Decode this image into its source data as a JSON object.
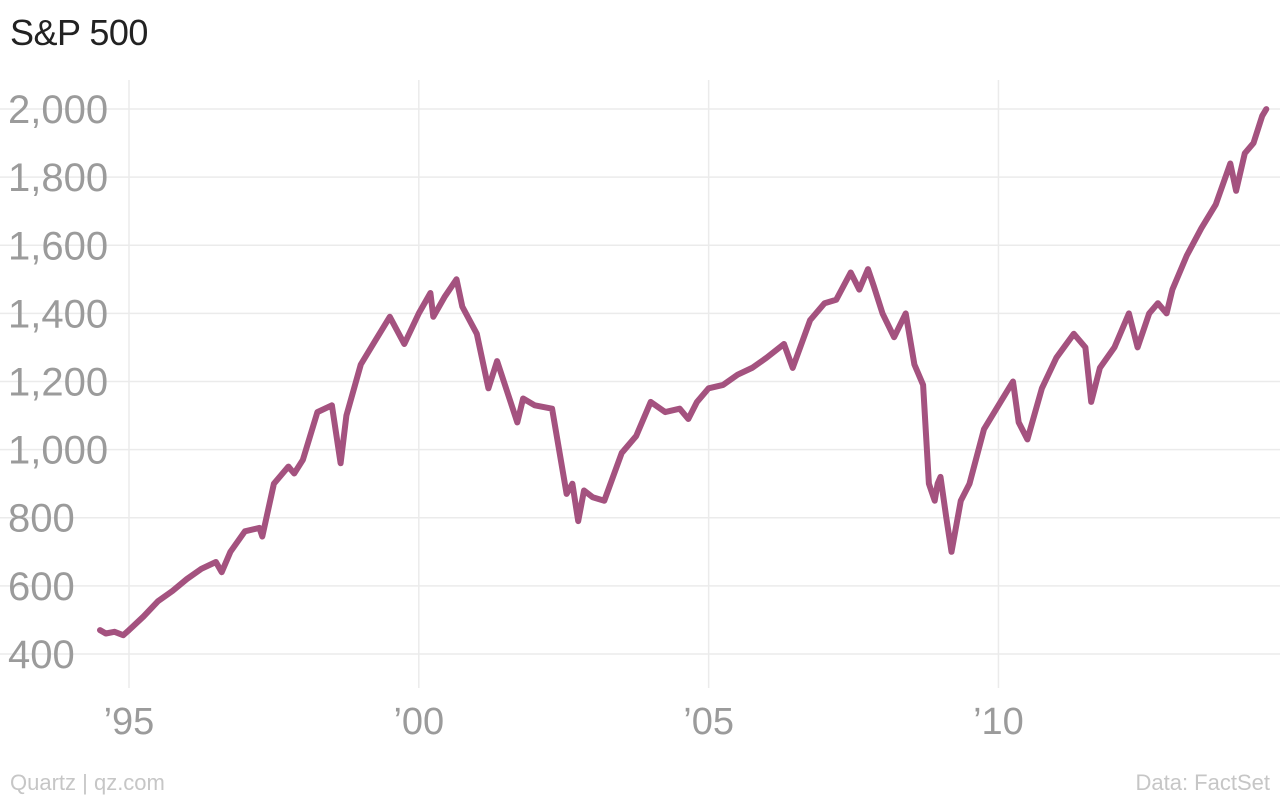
{
  "title": "S&P 500",
  "credit": "Quartz | qz.com",
  "source": "Data: FactSet",
  "colors": {
    "line": "#a4527f",
    "grid": "#ebebeb",
    "tick": "#9b9b9b"
  },
  "chart_data": {
    "type": "line",
    "title": "S&P 500",
    "xlabel": "",
    "ylabel": "",
    "xlim": [
      1994.5,
      2014.65
    ],
    "ylim": [
      300,
      2100
    ],
    "grid": true,
    "legend": "none",
    "y_ticks": [
      400,
      600,
      800,
      1000,
      1200,
      1400,
      1600,
      1800,
      2000
    ],
    "y_tick_labels": [
      "400",
      "600",
      "800",
      "1,000",
      "1,200",
      "1,400",
      "1,600",
      "1,800",
      "2,000"
    ],
    "x_ticks": [
      1995,
      2000,
      2005,
      2010
    ],
    "x_tick_labels": [
      "’95",
      "’00",
      "’05",
      "’10"
    ],
    "series": [
      {
        "x": [
          1994.5,
          1994.6,
          1994.75,
          1994.9,
          1995.0,
          1995.25,
          1995.5,
          1995.75,
          1996.0,
          1996.25,
          1996.5,
          1996.6,
          1996.75,
          1997.0,
          1997.25,
          1997.3,
          1997.5,
          1997.75,
          1997.85,
          1998.0,
          1998.25,
          1998.5,
          1998.65,
          1998.75,
          1999.0,
          1999.25,
          1999.5,
          1999.75,
          2000.0,
          2000.2,
          2000.25,
          2000.45,
          2000.65,
          2000.75,
          2001.0,
          2001.2,
          2001.35,
          2001.7,
          2001.8,
          2002.0,
          2002.3,
          2002.55,
          2002.65,
          2002.75,
          2002.85,
          2003.0,
          2003.2,
          2003.5,
          2003.75,
          2004.0,
          2004.25,
          2004.5,
          2004.65,
          2004.8,
          2005.0,
          2005.25,
          2005.5,
          2005.75,
          2006.0,
          2006.3,
          2006.45,
          2006.75,
          2007.0,
          2007.2,
          2007.45,
          2007.6,
          2007.75,
          2007.85,
          2008.0,
          2008.2,
          2008.4,
          2008.55,
          2008.7,
          2008.8,
          2008.9,
          2008.95,
          2009.0,
          2009.1,
          2009.19,
          2009.35,
          2009.5,
          2009.75,
          2010.0,
          2010.25,
          2010.35,
          2010.5,
          2010.75,
          2011.0,
          2011.3,
          2011.5,
          2011.6,
          2011.75,
          2012.0,
          2012.25,
          2012.4,
          2012.6,
          2012.75,
          2012.9,
          2013.0,
          2013.25,
          2013.5,
          2013.75,
          2014.0,
          2014.1,
          2014.25,
          2014.4,
          2014.55,
          2014.62
        ],
        "y": [
          470,
          460,
          465,
          455,
          470,
          510,
          555,
          585,
          620,
          650,
          670,
          640,
          700,
          760,
          770,
          745,
          900,
          950,
          930,
          970,
          1110,
          1130,
          960,
          1100,
          1250,
          1320,
          1390,
          1310,
          1400,
          1460,
          1390,
          1450,
          1500,
          1420,
          1340,
          1180,
          1260,
          1080,
          1150,
          1130,
          1120,
          870,
          900,
          790,
          880,
          860,
          850,
          990,
          1040,
          1140,
          1110,
          1120,
          1090,
          1140,
          1180,
          1190,
          1220,
          1240,
          1270,
          1310,
          1240,
          1380,
          1430,
          1440,
          1520,
          1470,
          1530,
          1480,
          1400,
          1330,
          1400,
          1250,
          1190,
          900,
          850,
          900,
          920,
          800,
          700,
          850,
          900,
          1060,
          1130,
          1200,
          1080,
          1030,
          1180,
          1270,
          1340,
          1300,
          1140,
          1240,
          1300,
          1400,
          1300,
          1400,
          1430,
          1400,
          1470,
          1570,
          1650,
          1720,
          1840,
          1760,
          1870,
          1900,
          1980,
          2000
        ]
      }
    ]
  }
}
